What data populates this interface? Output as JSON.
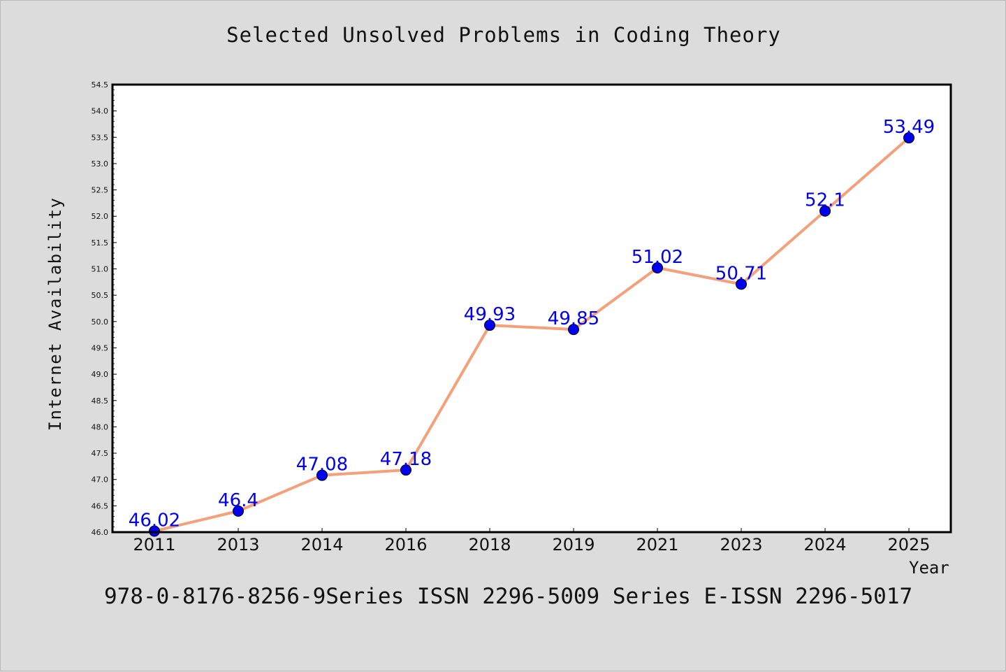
{
  "chart_data": {
    "type": "line",
    "title": "Selected Unsolved Problems in Coding Theory",
    "xlabel": "Year",
    "ylabel": "Internet Availability",
    "categories": [
      "2011",
      "2013",
      "2014",
      "2016",
      "2018",
      "2019",
      "2021",
      "2023",
      "2024",
      "2025"
    ],
    "series": [
      {
        "values": [
          46.02,
          46.4,
          47.08,
          47.18,
          49.93,
          49.85,
          51.02,
          50.71,
          52.1,
          53.49
        ],
        "data_labels": [
          "46.02",
          "46.4",
          "47.08",
          "47.18",
          "49.93",
          "49.85",
          "51.02",
          "50.71",
          "52.1",
          "53.49"
        ],
        "line_color": "#f4a07a",
        "marker_color": "#0000ee",
        "label_color": "#0000ee"
      }
    ],
    "ylim": [
      46.0,
      54.5
    ],
    "yticks": [
      "46.0",
      "46.5",
      "47.0",
      "47.5",
      "48.0",
      "48.5",
      "49.0",
      "49.5",
      "50.0",
      "50.5",
      "51.0",
      "51.5",
      "52.0",
      "52.5",
      "53.0",
      "53.5",
      "54.0",
      "54.5"
    ],
    "grid": false,
    "legend": "none"
  },
  "footer": "978-0-8176-8256-9Series ISSN 2296-5009 Series E-ISSN 2296-5017",
  "colors": {
    "background": "#dcdcdc",
    "plot_area": "#ffffff",
    "axis": "#000000"
  }
}
